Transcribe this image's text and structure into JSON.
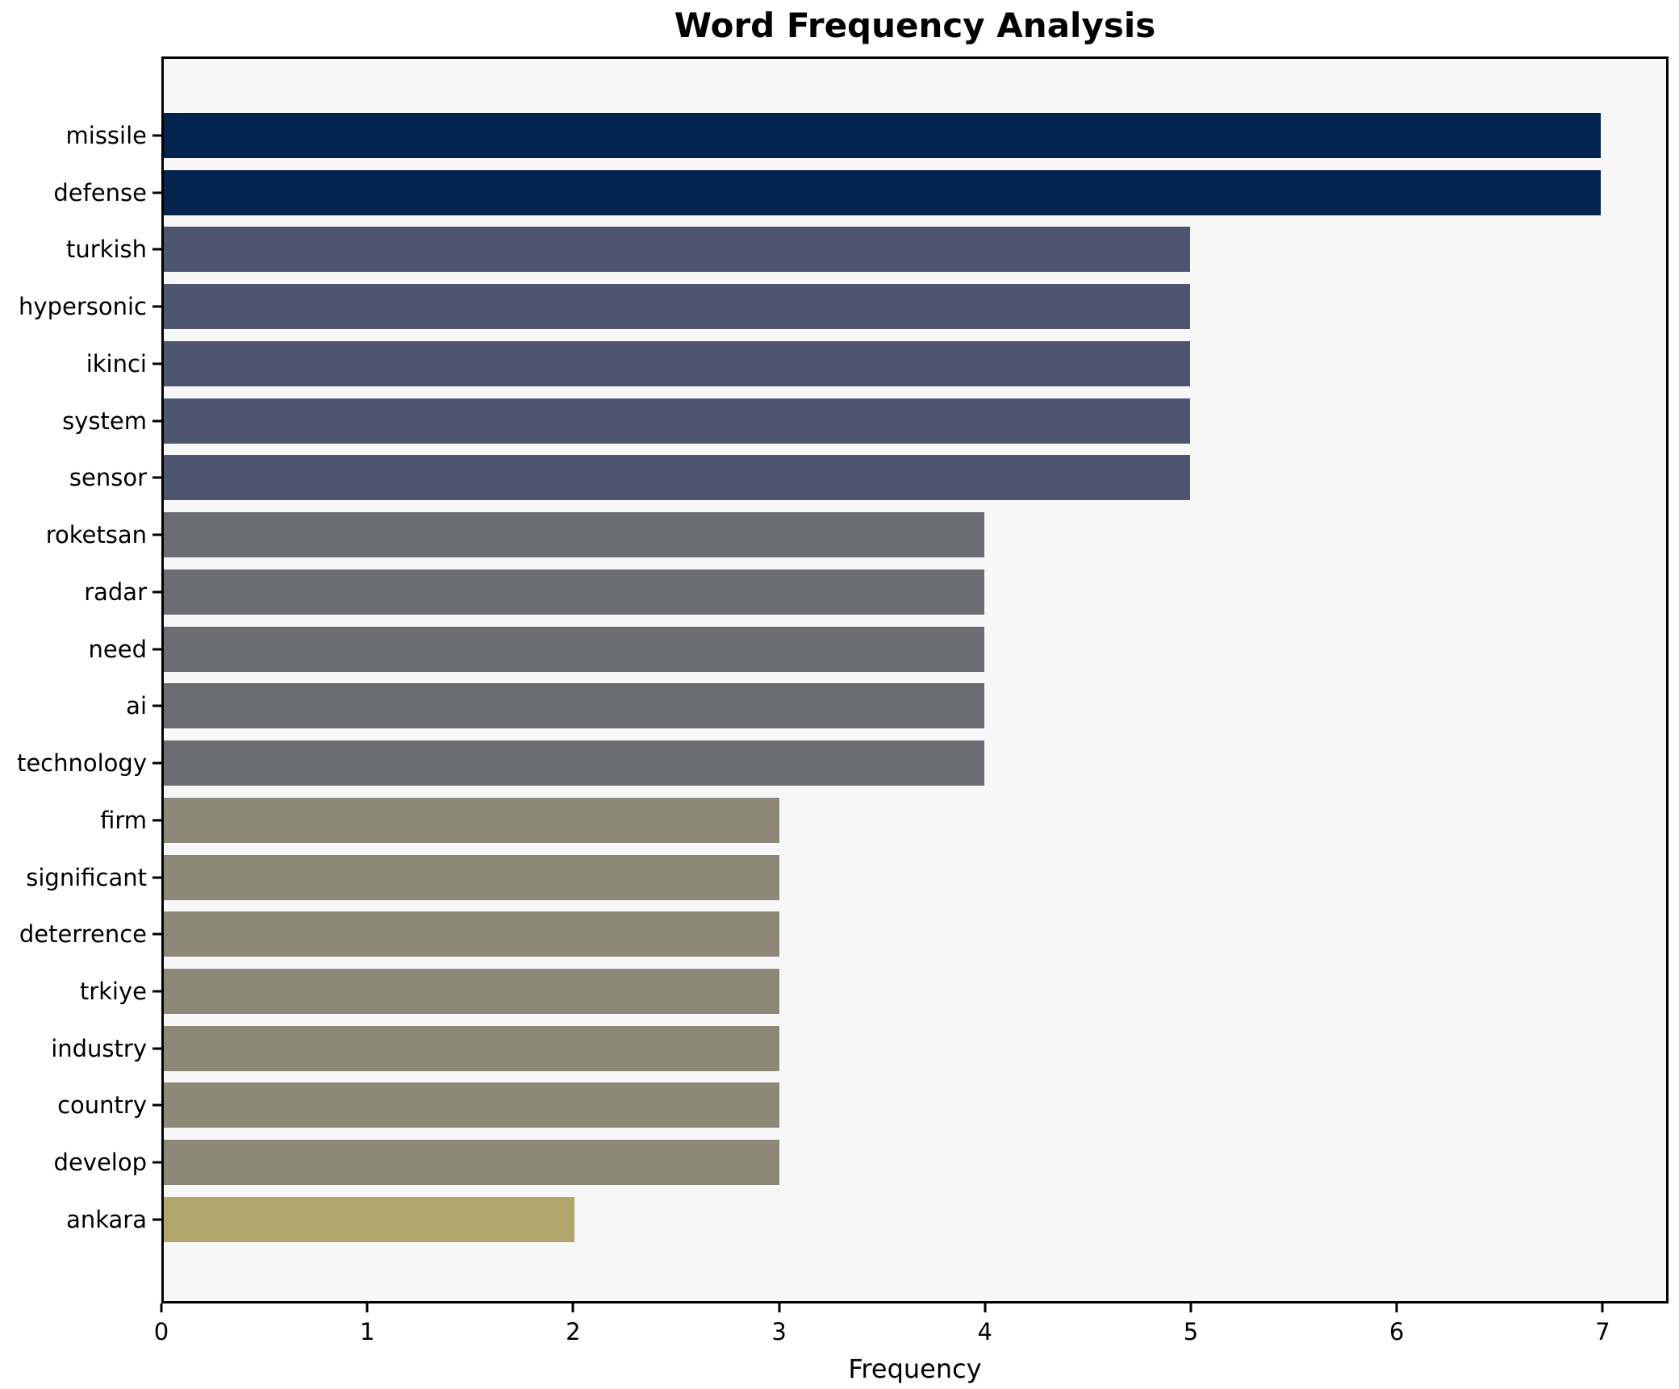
{
  "chart_data": {
    "type": "bar",
    "orientation": "horizontal",
    "title": "Word Frequency Analysis",
    "xlabel": "Frequency",
    "ylabel": "",
    "xlim": [
      0,
      7.32
    ],
    "xticks": [
      0,
      1,
      2,
      3,
      4,
      5,
      6,
      7
    ],
    "grid": false,
    "legend": "none",
    "plot_background": "#f7f7f7",
    "figure_background": "#ffffff",
    "spine_color": "#000000",
    "categories": [
      "missile",
      "defense",
      "turkish",
      "hypersonic",
      "ikinci",
      "system",
      "sensor",
      "roketsan",
      "radar",
      "need",
      "ai",
      "technology",
      "firm",
      "significant",
      "deterrence",
      "trkiye",
      "industry",
      "country",
      "develop",
      "ankara"
    ],
    "values": [
      7,
      7,
      5,
      5,
      5,
      5,
      5,
      4,
      4,
      4,
      4,
      4,
      3,
      3,
      3,
      3,
      3,
      3,
      3,
      2
    ],
    "bar_colors": [
      "#02234d",
      "#02234d",
      "#4d566e",
      "#4d566e",
      "#4d566e",
      "#4d566e",
      "#4d566e",
      "#6c6d72",
      "#6c6d72",
      "#6c6d72",
      "#6c6d72",
      "#6c6d72",
      "#8d8878",
      "#8d8878",
      "#8d8878",
      "#8d8878",
      "#8d8878",
      "#8d8878",
      "#8d8878",
      "#b1a56b"
    ]
  }
}
